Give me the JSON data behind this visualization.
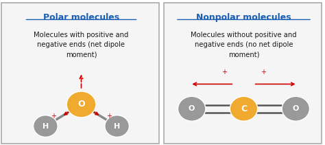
{
  "left_title": "Polar molecules",
  "left_text": "Molecules with positive and\nnegative ends (net dipole\nmoment)",
  "right_title": "Nonpolar molecules",
  "right_text": "Molecules without positive and\nnegative ends (no net dipole\nmoment)",
  "title_color": "#1a5fb4",
  "text_color": "#1a1a1a",
  "bg_color": "#f5f5f5",
  "border_color": "#aaaaaa",
  "atom_O_color": "#f0aa30",
  "atom_H_color": "#999999",
  "atom_C_color": "#f0aa30",
  "atom_gray_color": "#999999",
  "arrow_color": "#cc0000",
  "divider_color": "#aaaaaa"
}
